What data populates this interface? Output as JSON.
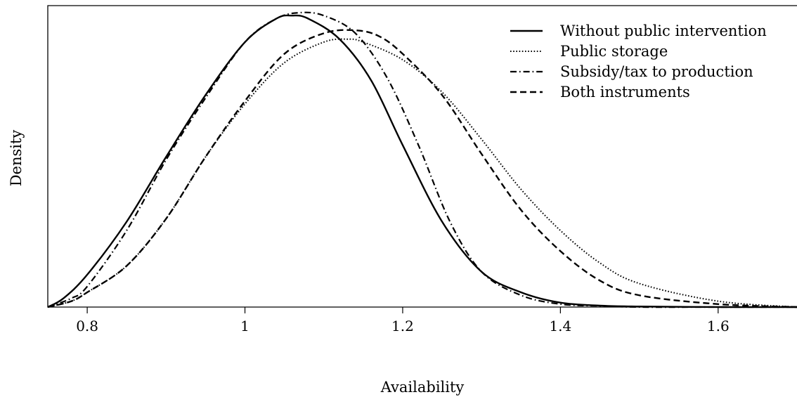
{
  "chart_data": {
    "type": "line",
    "title": "",
    "xlabel": "Availability",
    "ylabel": "Density",
    "xlim": [
      0.75,
      1.7
    ],
    "ylim": [
      0,
      1
    ],
    "x_ticks": [
      "0.8",
      "1",
      "1.2",
      "1.4",
      "1.6"
    ],
    "y_ticks_shown": false,
    "grid": false,
    "legend_position": "top-right",
    "colors": {
      "line": "#000000",
      "background": "#ffffff"
    },
    "series": [
      {
        "name": "Without public intervention",
        "style": "solid",
        "x": [
          0.75,
          0.77,
          0.8,
          0.85,
          0.9,
          0.95,
          1.0,
          1.04,
          1.06,
          1.08,
          1.12,
          1.16,
          1.2,
          1.25,
          1.3,
          1.35,
          1.4,
          1.45,
          1.5,
          1.6,
          1.7
        ],
        "y": [
          0.0,
          0.03,
          0.11,
          0.29,
          0.51,
          0.72,
          0.9,
          0.98,
          0.99,
          0.98,
          0.91,
          0.77,
          0.55,
          0.29,
          0.12,
          0.05,
          0.015,
          0.005,
          0.002,
          0.0,
          0.0
        ]
      },
      {
        "name": "Public storage",
        "style": "dotted",
        "x": [
          0.75,
          0.78,
          0.8,
          0.85,
          0.9,
          0.95,
          1.0,
          1.05,
          1.1,
          1.13,
          1.15,
          1.2,
          1.25,
          1.3,
          1.35,
          1.4,
          1.45,
          1.5,
          1.6,
          1.7
        ],
        "y": [
          0.0,
          0.02,
          0.05,
          0.14,
          0.3,
          0.51,
          0.69,
          0.83,
          0.9,
          0.91,
          0.9,
          0.84,
          0.73,
          0.57,
          0.4,
          0.26,
          0.15,
          0.08,
          0.02,
          0.0
        ]
      },
      {
        "name": "Subsidy/tax to production",
        "style": "dashdot",
        "x": [
          0.75,
          0.78,
          0.8,
          0.85,
          0.9,
          0.95,
          1.0,
          1.04,
          1.07,
          1.1,
          1.14,
          1.18,
          1.22,
          1.26,
          1.3,
          1.35,
          1.4,
          1.45,
          1.5,
          1.6,
          1.7
        ],
        "y": [
          0.0,
          0.03,
          0.07,
          0.26,
          0.5,
          0.71,
          0.9,
          0.98,
          1.0,
          0.99,
          0.93,
          0.78,
          0.55,
          0.29,
          0.12,
          0.04,
          0.01,
          0.004,
          0.0,
          0.0,
          0.0
        ]
      },
      {
        "name": "Both instruments",
        "style": "dashed",
        "x": [
          0.75,
          0.78,
          0.8,
          0.85,
          0.9,
          0.95,
          1.0,
          1.05,
          1.1,
          1.14,
          1.17,
          1.2,
          1.25,
          1.3,
          1.35,
          1.4,
          1.45,
          1.5,
          1.6,
          1.7
        ],
        "y": [
          0.0,
          0.02,
          0.05,
          0.14,
          0.3,
          0.51,
          0.7,
          0.86,
          0.93,
          0.94,
          0.92,
          0.86,
          0.72,
          0.52,
          0.33,
          0.19,
          0.09,
          0.04,
          0.01,
          0.0
        ]
      }
    ]
  }
}
